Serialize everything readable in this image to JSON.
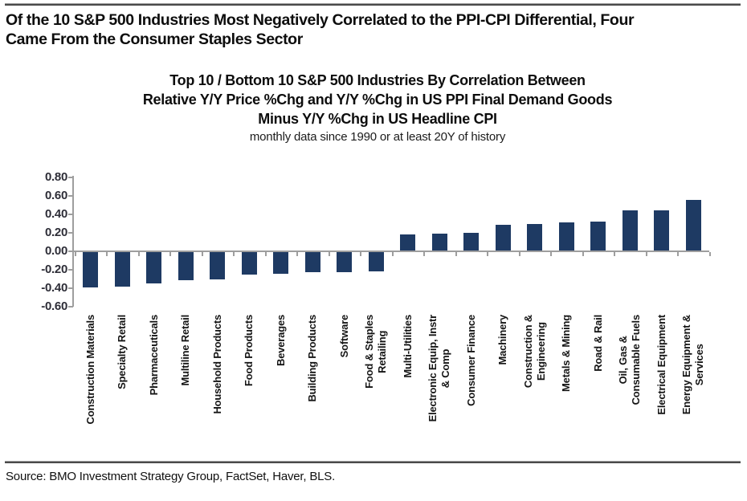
{
  "header": {
    "title_line1": "Of the 10 S&P 500 Industries Most Negatively Correlated to the PPI-CPI Differential, Four",
    "title_line2": "Came From the Consumer Staples Sector"
  },
  "chart": {
    "title_line1": "Top 10 / Bottom 10 S&P 500 Industries By Correlation Between",
    "title_line2": "Relative Y/Y Price %Chg and Y/Y %Chg in US PPI Final Demand Goods",
    "title_line3": "Minus Y/Y %Chg in US Headline CPI",
    "subtitle": "monthly data since 1990 or at least 20Y of history"
  },
  "chart_data": {
    "type": "bar",
    "categories": [
      "Construction Materials",
      "Specialty Retail",
      "Pharmaceuticals",
      "Multiline Retail",
      "Household Products",
      "Food Products",
      "Beverages",
      "Building Products",
      "Software",
      "Food & Staples\nRetailing",
      "Multi-Utilities",
      "Electronic Equip, Instr\n& Comp",
      "Consumer Finance",
      "Machinery",
      "Construction &\nEngineering",
      "Metals & Mining",
      "Road & Rail",
      "Oil, Gas &\nConsumable Fuels",
      "Electrical Equipment",
      "Energy Equipment &\nServices"
    ],
    "values": [
      -0.39,
      -0.38,
      -0.35,
      -0.31,
      -0.3,
      -0.25,
      -0.24,
      -0.23,
      -0.23,
      -0.22,
      0.18,
      0.19,
      0.2,
      0.29,
      0.3,
      0.31,
      0.32,
      0.44,
      0.44,
      0.56
    ],
    "title": "Top 10 / Bottom 10 S&P 500 Industries By Correlation Between Relative Y/Y Price %Chg and Y/Y %Chg in US PPI Final Demand Goods Minus Y/Y %Chg in US Headline CPI",
    "xlabel": "",
    "ylabel": "",
    "ylim": [
      -0.6,
      0.8
    ],
    "ytick_step": 0.2,
    "grid": false,
    "legend": false,
    "bar_color": "#1e3a63",
    "axis_color": "#9e9e9e"
  },
  "footer": {
    "source": "Source: BMO Investment Strategy Group, FactSet, Haver, BLS."
  }
}
